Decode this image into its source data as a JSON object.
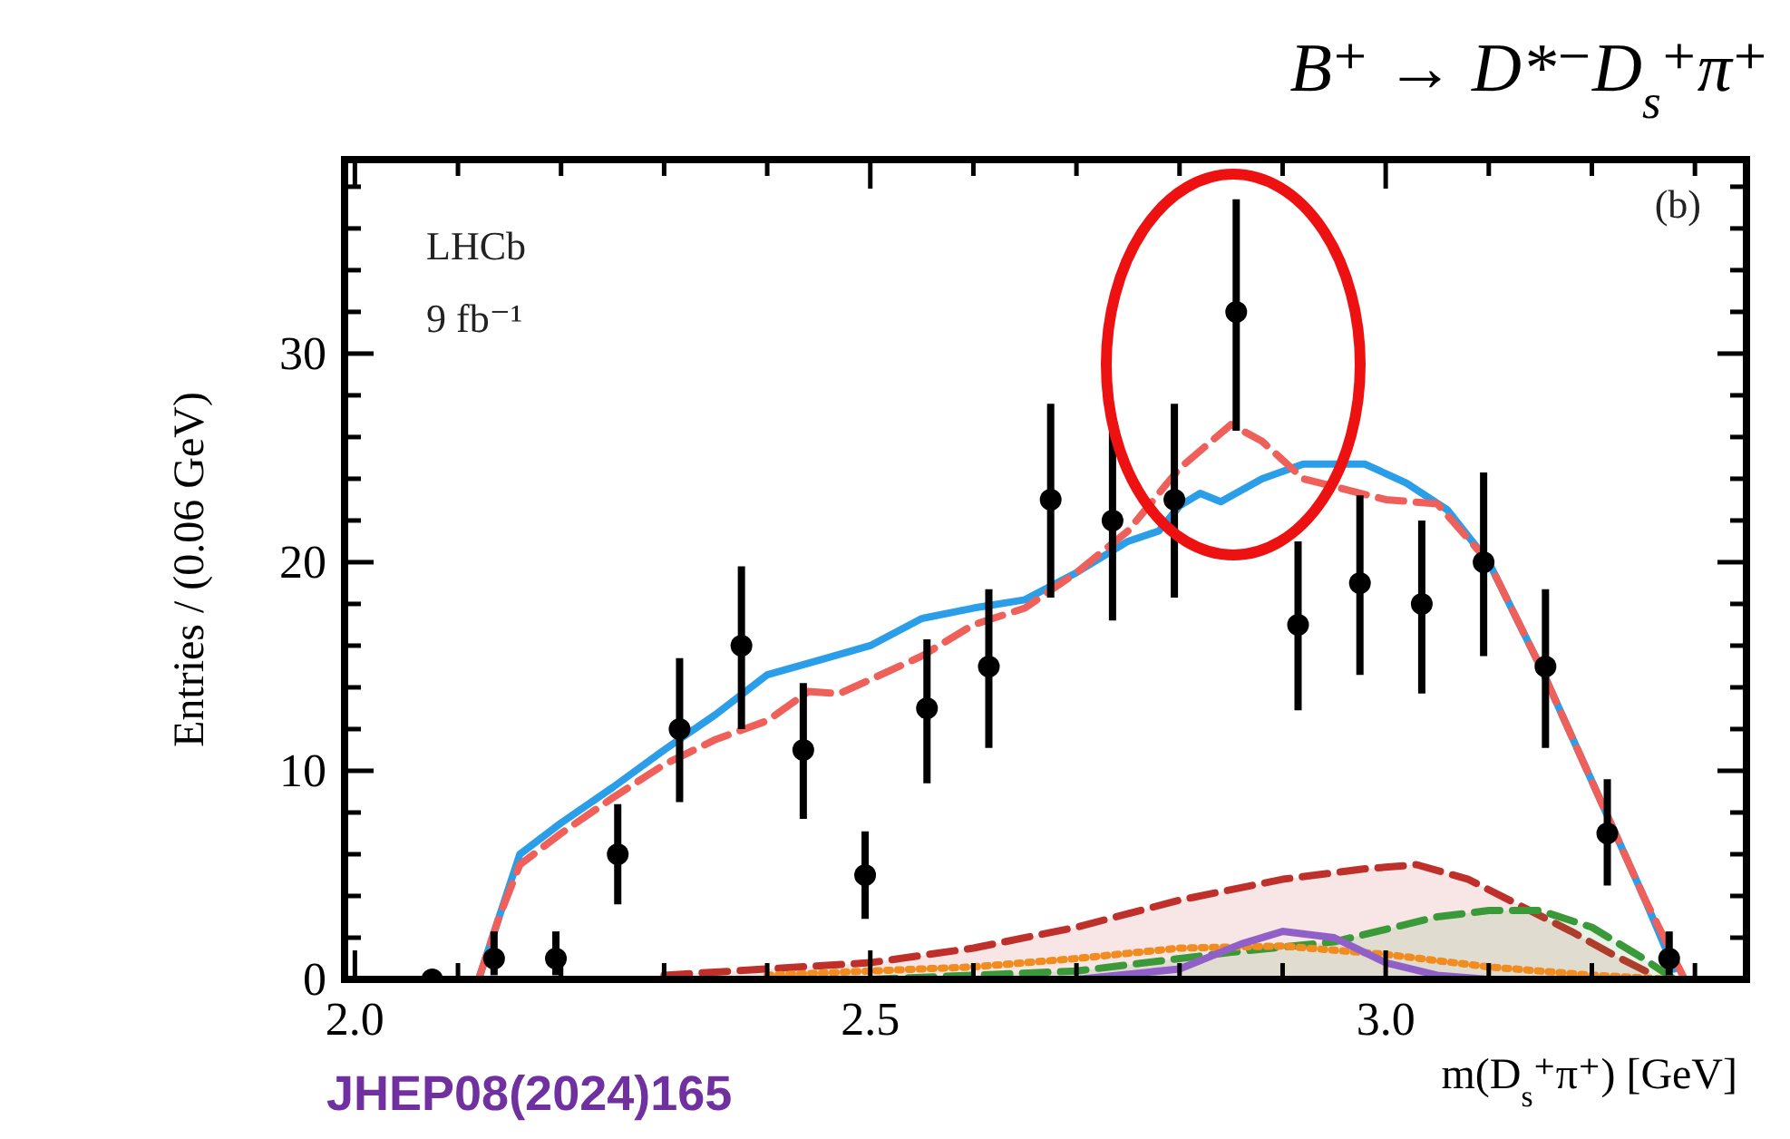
{
  "chart_data": {
    "type": "scatter",
    "title": "B⁺ → D*⁻D$_{s}$⁺π⁺",
    "xlabel": "m(D$_{s}$⁺π⁺) [GeV]",
    "ylabel": "Entries / (0.06 GeV)",
    "xlim": [
      1.99,
      3.35
    ],
    "ylim": [
      0,
      39.3
    ],
    "xticks": [
      {
        "value": 2.0,
        "label": "2.0"
      },
      {
        "value": 2.1,
        "label": null
      },
      {
        "value": 2.2,
        "label": null
      },
      {
        "value": 2.3,
        "label": null
      },
      {
        "value": 2.4,
        "label": null
      },
      {
        "value": 2.5,
        "label": "2.5"
      },
      {
        "value": 2.6,
        "label": null
      },
      {
        "value": 2.7,
        "label": null
      },
      {
        "value": 2.8,
        "label": null
      },
      {
        "value": 2.9,
        "label": null
      },
      {
        "value": 3.0,
        "label": "3.0"
      },
      {
        "value": 3.1,
        "label": null
      },
      {
        "value": 3.2,
        "label": null
      },
      {
        "value": 3.3,
        "label": null
      }
    ],
    "yticks": [
      0,
      {
        "value": 2,
        "label": null
      },
      {
        "value": 4,
        "label": null
      },
      {
        "value": 6,
        "label": null
      },
      {
        "value": 8,
        "label": null
      },
      10,
      {
        "value": 12,
        "label": null
      },
      {
        "value": 14,
        "label": null
      },
      {
        "value": 16,
        "label": null
      },
      {
        "value": 18,
        "label": null
      },
      20,
      {
        "value": 22,
        "label": null
      },
      {
        "value": 24,
        "label": null
      },
      {
        "value": 26,
        "label": null
      },
      {
        "value": 28,
        "label": null
      },
      30,
      {
        "value": 32,
        "label": null
      },
      {
        "value": 34,
        "label": null
      },
      {
        "value": 36,
        "label": null
      },
      {
        "value": 38,
        "label": null
      }
    ],
    "annotations": [
      "LHCb",
      "9 fb⁻¹",
      "(b)",
      "JHEP08(2024)165"
    ],
    "series": [
      {
        "type": "area",
        "line_style": "dashed",
        "color": "#c0302a",
        "x": [
          2.3,
          2.5,
          2.6,
          2.7,
          2.8,
          2.9,
          2.98,
          3.03,
          3.08,
          3.12,
          3.18,
          3.22,
          3.26
        ],
        "values": [
          0.2,
          0.8,
          1.5,
          2.5,
          3.8,
          4.8,
          5.3,
          5.5,
          4.8,
          3.8,
          2.3,
          1.2,
          0.2
        ]
      },
      {
        "type": "area",
        "line_style": "dashed",
        "color": "#3a9a3a",
        "x": [
          2.5,
          2.7,
          2.85,
          2.95,
          3.0,
          3.05,
          3.1,
          3.15,
          3.2,
          3.25,
          3.28
        ],
        "values": [
          0,
          0.4,
          1.3,
          1.8,
          2.4,
          3.0,
          3.3,
          3.3,
          2.5,
          1.0,
          0
        ]
      },
      {
        "type": "line",
        "line_style": "dotted",
        "color": "#f08c20",
        "x": [
          2.4,
          2.6,
          2.7,
          2.8,
          2.9,
          3.0,
          3.1,
          3.2,
          3.28
        ],
        "values": [
          0.2,
          0.6,
          1.0,
          1.5,
          1.6,
          1.2,
          0.6,
          0.2,
          0
        ]
      },
      {
        "type": "line",
        "line_style": "solid",
        "color": "#9060c8",
        "x": [
          2.7,
          2.8,
          2.86,
          2.9,
          2.95,
          3.0,
          3.05,
          3.1
        ],
        "values": [
          0,
          0.5,
          1.7,
          2.3,
          2.0,
          0.8,
          0.2,
          0
        ]
      },
      {
        "type": "line",
        "line_style": "solid",
        "color": "#2a9ee8",
        "x": [
          2.12,
          2.14,
          2.16,
          2.2,
          2.25,
          2.3,
          2.35,
          2.4,
          2.45,
          2.5,
          2.55,
          2.6,
          2.65,
          2.7,
          2.75,
          2.78,
          2.8,
          2.82,
          2.84,
          2.88,
          2.92,
          2.98,
          3.02,
          3.06,
          3.1,
          3.15,
          3.2,
          3.25,
          3.28
        ],
        "values": [
          0,
          3,
          6,
          7.5,
          9.2,
          11,
          12.7,
          14.6,
          15.3,
          16,
          17.3,
          17.8,
          18.2,
          19.5,
          21,
          21.5,
          22.7,
          23.3,
          22.9,
          24.0,
          24.7,
          24.7,
          23.8,
          22.5,
          20,
          15,
          9.5,
          4,
          0.5
        ]
      },
      {
        "type": "line",
        "line_style": "dashed",
        "color": "#f0605a",
        "x": [
          2.12,
          2.14,
          2.16,
          2.2,
          2.25,
          2.3,
          2.35,
          2.4,
          2.44,
          2.47,
          2.55,
          2.6,
          2.65,
          2.7,
          2.75,
          2.8,
          2.85,
          2.88,
          2.92,
          3.0,
          3.05,
          3.1,
          3.15,
          3.2,
          3.25,
          3.29
        ],
        "values": [
          0,
          3,
          5.5,
          7,
          8.7,
          10.3,
          11.5,
          12.4,
          13.8,
          13.7,
          15.5,
          17,
          17.8,
          19.5,
          21.5,
          24.5,
          26.6,
          25.8,
          24,
          23,
          22.8,
          20,
          15,
          9.5,
          4,
          0
        ]
      },
      {
        "marker": "circle",
        "color": "#000000",
        "x": [
          2.075,
          2.135,
          2.195,
          2.255,
          2.315,
          2.375,
          2.435,
          2.495,
          2.555,
          2.615,
          2.675,
          2.735,
          2.795,
          2.855,
          2.915,
          2.975,
          3.035,
          3.095,
          3.155,
          3.215,
          3.275
        ],
        "values": [
          0,
          1,
          1,
          6,
          12,
          16,
          11,
          5,
          13,
          15,
          23,
          22,
          23,
          32,
          17,
          19,
          18,
          20,
          15,
          7,
          1
        ],
        "errors": [
          null,
          [
            0.2,
            2.3
          ],
          [
            0.2,
            2.3
          ],
          [
            3.6,
            8.4
          ],
          [
            8.5,
            15.4
          ],
          [
            12,
            19.8
          ],
          [
            7.7,
            14.2
          ],
          [
            2.9,
            7.1
          ],
          [
            9.4,
            16.3
          ],
          [
            11.1,
            18.7
          ],
          [
            18.3,
            27.6
          ],
          [
            17.2,
            26.5
          ],
          [
            18.3,
            27.6
          ],
          [
            26.3,
            37.4
          ],
          [
            12.9,
            21.0
          ],
          [
            14.6,
            23.2
          ],
          [
            13.7,
            22.0
          ],
          [
            15.5,
            24.3
          ],
          [
            11.1,
            18.7
          ],
          [
            4.5,
            9.6
          ],
          [
            0.2,
            2.3
          ]
        ]
      }
    ]
  }
}
